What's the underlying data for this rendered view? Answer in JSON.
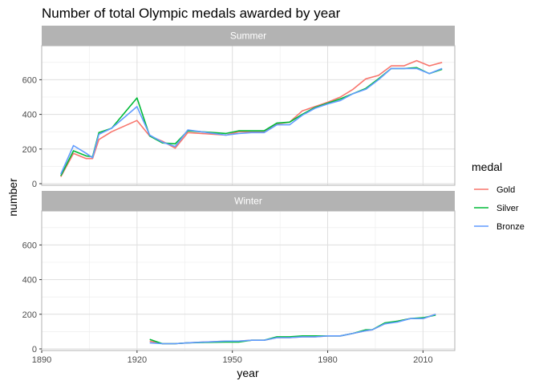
{
  "chart_data": {
    "type": "line",
    "title": "Number of total Olympic medals awarded by year",
    "xlabel": "year",
    "ylabel": "number",
    "xlim": [
      1890,
      2020
    ],
    "ylim": [
      0,
      750
    ],
    "x_ticks": [
      1890,
      1920,
      1950,
      1980,
      2010
    ],
    "y_ticks": [
      0,
      200,
      400,
      600
    ],
    "grid": true,
    "legend": {
      "title": "medal",
      "placement": "right",
      "entries": [
        "Gold",
        "Silver",
        "Bronze"
      ]
    },
    "colors": {
      "Gold": "#F8766D",
      "Silver": "#00BA38",
      "Bronze": "#619CFF"
    },
    "facets": [
      {
        "name": "Summer",
        "series": [
          {
            "name": "Gold",
            "points": [
              [
                1896,
                40
              ],
              [
                1900,
                175
              ],
              [
                1904,
                145
              ],
              [
                1906,
                145
              ],
              [
                1908,
                255
              ],
              [
                1912,
                300
              ],
              [
                1920,
                365
              ],
              [
                1924,
                275
              ],
              [
                1928,
                245
              ],
              [
                1932,
                205
              ],
              [
                1936,
                295
              ],
              [
                1948,
                280
              ],
              [
                1952,
                300
              ],
              [
                1956,
                300
              ],
              [
                1960,
                300
              ],
              [
                1964,
                345
              ],
              [
                1968,
                355
              ],
              [
                1972,
                420
              ],
              [
                1976,
                445
              ],
              [
                1980,
                470
              ],
              [
                1984,
                500
              ],
              [
                1988,
                545
              ],
              [
                1992,
                605
              ],
              [
                1996,
                625
              ],
              [
                2000,
                680
              ],
              [
                2004,
                680
              ],
              [
                2008,
                710
              ],
              [
                2012,
                680
              ],
              [
                2016,
                700
              ]
            ]
          },
          {
            "name": "Silver",
            "points": [
              [
                1896,
                45
              ],
              [
                1900,
                190
              ],
              [
                1904,
                160
              ],
              [
                1906,
                155
              ],
              [
                1908,
                295
              ],
              [
                1912,
                320
              ],
              [
                1920,
                495
              ],
              [
                1924,
                275
              ],
              [
                1928,
                235
              ],
              [
                1932,
                230
              ],
              [
                1936,
                305
              ],
              [
                1948,
                290
              ],
              [
                1952,
                305
              ],
              [
                1956,
                305
              ],
              [
                1960,
                305
              ],
              [
                1964,
                350
              ],
              [
                1968,
                355
              ],
              [
                1972,
                400
              ],
              [
                1976,
                440
              ],
              [
                1980,
                465
              ],
              [
                1984,
                490
              ],
              [
                1988,
                520
              ],
              [
                1992,
                550
              ],
              [
                1996,
                605
              ],
              [
                2000,
                665
              ],
              [
                2004,
                665
              ],
              [
                2008,
                670
              ],
              [
                2012,
                635
              ],
              [
                2016,
                660
              ]
            ]
          },
          {
            "name": "Bronze",
            "points": [
              [
                1896,
                55
              ],
              [
                1900,
                220
              ],
              [
                1904,
                175
              ],
              [
                1906,
                150
              ],
              [
                1908,
                285
              ],
              [
                1912,
                320
              ],
              [
                1920,
                445
              ],
              [
                1924,
                280
              ],
              [
                1928,
                240
              ],
              [
                1932,
                215
              ],
              [
                1936,
                310
              ],
              [
                1948,
                280
              ],
              [
                1952,
                290
              ],
              [
                1956,
                295
              ],
              [
                1960,
                295
              ],
              [
                1964,
                340
              ],
              [
                1968,
                340
              ],
              [
                1972,
                395
              ],
              [
                1976,
                435
              ],
              [
                1980,
                460
              ],
              [
                1984,
                480
              ],
              [
                1988,
                520
              ],
              [
                1992,
                545
              ],
              [
                1996,
                600
              ],
              [
                2000,
                665
              ],
              [
                2004,
                665
              ],
              [
                2008,
                665
              ],
              [
                2012,
                635
              ],
              [
                2016,
                665
              ]
            ]
          }
        ]
      },
      {
        "name": "Winter",
        "series": [
          {
            "name": "Gold",
            "points": [
              [
                1924,
                45
              ],
              [
                1928,
                30
              ],
              [
                1932,
                30
              ],
              [
                1936,
                35
              ],
              [
                1948,
                45
              ],
              [
                1952,
                45
              ],
              [
                1956,
                50
              ],
              [
                1960,
                50
              ],
              [
                1964,
                65
              ],
              [
                1968,
                65
              ],
              [
                1972,
                70
              ],
              [
                1976,
                70
              ],
              [
                1980,
                75
              ],
              [
                1984,
                75
              ],
              [
                1988,
                90
              ],
              [
                1992,
                105
              ],
              [
                1994,
                110
              ],
              [
                1998,
                145
              ],
              [
                2002,
                160
              ],
              [
                2006,
                175
              ],
              [
                2010,
                175
              ],
              [
                2014,
                200
              ]
            ]
          },
          {
            "name": "Silver",
            "points": [
              [
                1924,
                55
              ],
              [
                1928,
                30
              ],
              [
                1932,
                30
              ],
              [
                1936,
                35
              ],
              [
                1948,
                40
              ],
              [
                1952,
                40
              ],
              [
                1956,
                50
              ],
              [
                1960,
                50
              ],
              [
                1964,
                70
              ],
              [
                1968,
                70
              ],
              [
                1972,
                75
              ],
              [
                1976,
                75
              ],
              [
                1980,
                75
              ],
              [
                1984,
                75
              ],
              [
                1988,
                90
              ],
              [
                1992,
                110
              ],
              [
                1994,
                110
              ],
              [
                1998,
                150
              ],
              [
                2002,
                160
              ],
              [
                2006,
                175
              ],
              [
                2010,
                180
              ],
              [
                2014,
                195
              ]
            ]
          },
          {
            "name": "Bronze",
            "points": [
              [
                1924,
                35
              ],
              [
                1928,
                30
              ],
              [
                1932,
                30
              ],
              [
                1936,
                35
              ],
              [
                1948,
                45
              ],
              [
                1952,
                45
              ],
              [
                1956,
                50
              ],
              [
                1960,
                50
              ],
              [
                1964,
                65
              ],
              [
                1968,
                65
              ],
              [
                1972,
                70
              ],
              [
                1976,
                70
              ],
              [
                1980,
                75
              ],
              [
                1984,
                75
              ],
              [
                1988,
                90
              ],
              [
                1992,
                105
              ],
              [
                1994,
                110
              ],
              [
                1998,
                145
              ],
              [
                2002,
                155
              ],
              [
                2006,
                175
              ],
              [
                2010,
                175
              ],
              [
                2014,
                200
              ]
            ]
          }
        ]
      }
    ]
  }
}
